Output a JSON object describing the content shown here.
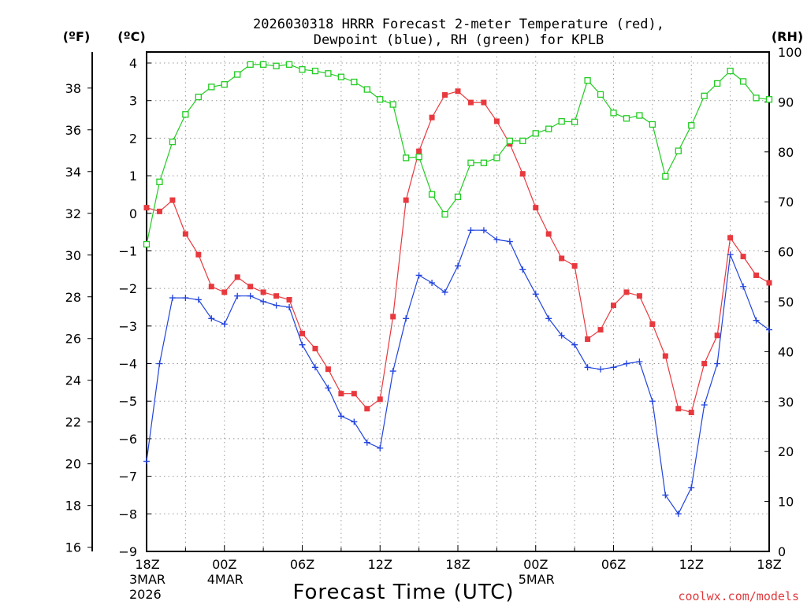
{
  "chart_data": {
    "type": "line",
    "title_line1": "2026030318 HRRR Forecast 2-meter Temperature (red),",
    "title_line2": "Dewpoint (blue), RH (green) for KPLB",
    "xlabel": "Forecast Time (UTC)",
    "credit": "coolwx.com/models",
    "unit_f": "(ºF)",
    "unit_c": "(ºC)",
    "unit_rh": "(RH)",
    "c_ylim": [
      -9,
      4.3
    ],
    "rh_ylim": [
      0,
      100
    ],
    "x_range": [
      0,
      48
    ],
    "c_ticks": [
      "4",
      "3",
      "2",
      "1",
      "0",
      "−1",
      "−2",
      "−3",
      "−4",
      "−5",
      "−6",
      "−7",
      "−8",
      "−9"
    ],
    "c_tick_values": [
      4,
      3,
      2,
      1,
      0,
      -1,
      -2,
      -3,
      -4,
      -5,
      -6,
      -7,
      -8,
      -9
    ],
    "f_ticks": [
      "38",
      "36",
      "34",
      "32",
      "30",
      "28",
      "26",
      "24",
      "22",
      "20",
      "18",
      "16"
    ],
    "f_tick_values": [
      38,
      36,
      34,
      32,
      30,
      28,
      26,
      24,
      22,
      20,
      18,
      16
    ],
    "rh_ticks": [
      "100",
      "90",
      "80",
      "70",
      "60",
      "50",
      "40",
      "30",
      "20",
      "10",
      "0"
    ],
    "rh_tick_values": [
      100,
      90,
      80,
      70,
      60,
      50,
      40,
      30,
      20,
      10,
      0
    ],
    "x_ticks": [
      {
        "hour": 0,
        "label": "18Z",
        "sub1": "3MAR",
        "sub2": "2026"
      },
      {
        "hour": 6,
        "label": "00Z",
        "sub1": "4MAR",
        "sub2": ""
      },
      {
        "hour": 12,
        "label": "06Z",
        "sub1": "",
        "sub2": ""
      },
      {
        "hour": 18,
        "label": "12Z",
        "sub1": "",
        "sub2": ""
      },
      {
        "hour": 24,
        "label": "18Z",
        "sub1": "",
        "sub2": ""
      },
      {
        "hour": 30,
        "label": "00Z",
        "sub1": "5MAR",
        "sub2": ""
      },
      {
        "hour": 36,
        "label": "06Z",
        "sub1": "",
        "sub2": ""
      },
      {
        "hour": 42,
        "label": "12Z",
        "sub1": "",
        "sub2": ""
      },
      {
        "hour": 48,
        "label": "18Z",
        "sub1": "",
        "sub2": ""
      }
    ],
    "series": [
      {
        "name": "Temperature",
        "color": "#e8393e",
        "marker": "filled-square",
        "axis": "celsius",
        "values": [
          0.15,
          0.05,
          0.35,
          -0.55,
          -1.1,
          -1.95,
          -2.1,
          -1.7,
          -1.95,
          -2.1,
          -2.2,
          -2.3,
          -3.2,
          -3.6,
          -4.15,
          -4.8,
          -4.8,
          -5.2,
          -4.95,
          -2.75,
          0.35,
          1.65,
          2.55,
          3.15,
          3.25,
          2.95,
          2.95,
          2.45,
          1.85,
          1.05,
          0.15,
          -0.55,
          -1.2,
          -1.4,
          -3.35,
          -3.1,
          -2.45,
          -2.1,
          -2.2,
          -2.95,
          -3.8,
          -5.2,
          -5.3,
          -4.0,
          -3.25,
          -0.65,
          -1.15,
          -1.65,
          -1.85
        ]
      },
      {
        "name": "Dewpoint",
        "color": "#2244dd",
        "marker": "plus",
        "axis": "celsius",
        "values": [
          -6.6,
          -4.0,
          -2.25,
          -2.25,
          -2.3,
          -2.8,
          -2.95,
          -2.2,
          -2.2,
          -2.35,
          -2.45,
          -2.5,
          -3.5,
          -4.1,
          -4.65,
          -5.4,
          -5.55,
          -6.1,
          -6.25,
          -4.2,
          -2.8,
          -1.65,
          -1.85,
          -2.1,
          -1.4,
          -0.45,
          -0.45,
          -0.7,
          -0.75,
          -1.5,
          -2.15,
          -2.8,
          -3.25,
          -3.5,
          -4.1,
          -4.15,
          -4.1,
          -4.0,
          -3.95,
          -5.0,
          -7.5,
          -8.0,
          -7.3,
          -5.1,
          -4.0,
          -1.1,
          -1.95,
          -2.85,
          -3.1
        ]
      },
      {
        "name": "RH",
        "color": "#22cc22",
        "marker": "open-square",
        "axis": "rh",
        "values": [
          61.5,
          74,
          82,
          87.5,
          91,
          93,
          93.5,
          95.5,
          97.5,
          97.5,
          97.2,
          97.5,
          96.5,
          96.2,
          95.7,
          95,
          94,
          92.5,
          90.5,
          89.5,
          78.8,
          79,
          71.5,
          67.5,
          71,
          77.8,
          77.8,
          78.8,
          82.2,
          82.2,
          83.7,
          84.6,
          86.1,
          86,
          94.3,
          91.5,
          87.8,
          86.7,
          87.3,
          85.5,
          75.1,
          80.2,
          85.3,
          91.2,
          93.7,
          96.2,
          94.1,
          90.8,
          90.5
        ]
      }
    ]
  }
}
